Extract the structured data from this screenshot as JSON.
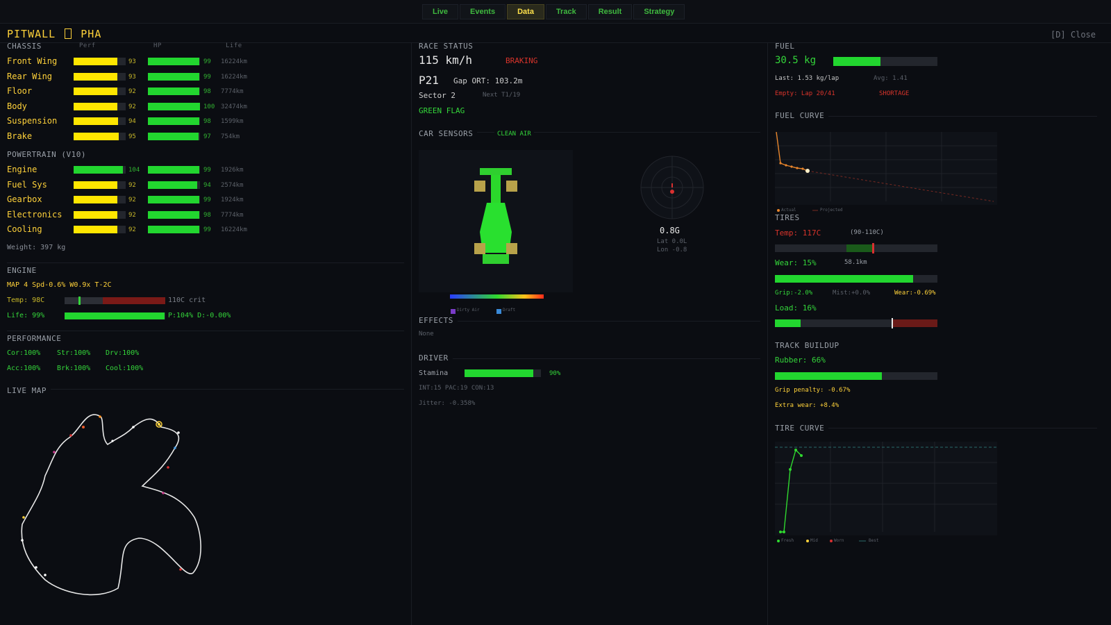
{
  "tabs": [
    "Live",
    "Events",
    "Data",
    "Track",
    "Result",
    "Strategy"
  ],
  "active_tab": "Data",
  "header": {
    "title_left": "PITWALL",
    "title_right": "PHA",
    "close": "[D] Close"
  },
  "chassis": {
    "title": "CHASSIS",
    "col_perf": "Perf",
    "col_hp": "HP",
    "col_life": "Life",
    "rows": [
      {
        "name": "Front Wing",
        "perf": 93,
        "hp": 99,
        "life": "16224km"
      },
      {
        "name": "Rear Wing",
        "perf": 93,
        "hp": 99,
        "life": "16224km"
      },
      {
        "name": "Floor",
        "perf": 92,
        "hp": 98,
        "life": "7774km"
      },
      {
        "name": "Body",
        "perf": 92,
        "hp": 100,
        "life": "32474km"
      },
      {
        "name": "Suspension",
        "perf": 94,
        "hp": 98,
        "life": "1599km"
      },
      {
        "name": "Brake",
        "perf": 95,
        "hp": 97,
        "life": "754km"
      }
    ]
  },
  "powertrain": {
    "title": "POWERTRAIN (V10)",
    "rows": [
      {
        "name": "Engine",
        "perf": 104,
        "hp": 99,
        "life": "1926km"
      },
      {
        "name": "Fuel Sys",
        "perf": 92,
        "hp": 94,
        "life": "2574km"
      },
      {
        "name": "Gearbox",
        "perf": 92,
        "hp": 99,
        "life": "1924km"
      },
      {
        "name": "Electronics",
        "perf": 92,
        "hp": 98,
        "life": "7774km"
      },
      {
        "name": "Cooling",
        "perf": 92,
        "hp": 99,
        "life": "16224km"
      }
    ],
    "weight": "Weight: 397 kg"
  },
  "engine": {
    "title": "ENGINE",
    "modes": "MAP 4  Spd-0.6%  W0.9x  T-2C",
    "temp_label": "Temp: 98C",
    "temp_crit": "110C crit",
    "temp_level": 0.14,
    "life_label": "Life: 99%",
    "life_level": 0.99,
    "life_extra": "P:104% D:-0.00%"
  },
  "performance": {
    "title": "PERFORMANCE",
    "row1": [
      "Cor:100%",
      "Str:100%",
      "Drv:100%"
    ],
    "row2": [
      "Acc:100%",
      "Brk:100%",
      "Cool:100%"
    ]
  },
  "live_map": {
    "title": "LIVE MAP"
  },
  "race_status": {
    "title": "RACE STATUS",
    "speed": "115 km/h",
    "state": "BRAKING",
    "position": "P21",
    "gap": "Gap ORT: 103.2m",
    "sector": "Sector 2",
    "next": "Next T1/19",
    "flag": "GREEN FLAG"
  },
  "car_sensors": {
    "title": "CAR SENSORS",
    "air": "CLEAN AIR",
    "g_total": "0.8G",
    "g_lat": "Lat 0.0L",
    "g_lon": "Lon -0.8",
    "legend_dirty": "Dirty Air",
    "legend_draft": "Draft"
  },
  "effects": {
    "title": "EFFECTS",
    "value": "None"
  },
  "driver": {
    "title": "DRIVER",
    "stamina_label": "Stamina",
    "stamina": 90,
    "stamina_text": "90%",
    "attrs": "INT:15 PAC:19 CON:13",
    "jitter": "Jitter: -0.358%"
  },
  "fuel": {
    "title": "FUEL",
    "amount": "30.5 kg",
    "level": 0.45,
    "last": "Last: 1.53 kg/lap",
    "avg": "Avg: 1.41",
    "empty": "Empty: Lap 20/41",
    "shortage": "SHORTAGE",
    "curve_title": "FUEL CURVE",
    "legend_actual": "Actual",
    "legend_projected": "Projected"
  },
  "tires": {
    "title": "TIRES",
    "temp": "Temp: 117C",
    "temp_window": "(90-110C)",
    "temp_level": 0.6,
    "wear": "Wear: 15%",
    "wear_km": "58.1km",
    "wear_level": 0.85,
    "grip": "Grip:-2.0%",
    "mist": "Mist:+0.0%",
    "wear_rate": "Wear:-0.69%",
    "load": "Load: 16%",
    "load_level": 0.16
  },
  "track_buildup": {
    "title": "TRACK BUILDUP",
    "rubber": "Rubber: 66%",
    "rubber_level": 0.66,
    "grip_penalty": "Grip penalty: -0.67%",
    "extra_wear": "Extra wear: +8.4%"
  },
  "tire_curve": {
    "title": "TIRE CURVE",
    "legend": [
      "Fresh",
      "Mid",
      "Worn",
      "Best"
    ]
  },
  "colors": {
    "accent": "#ffd23a",
    "good": "#34d63a",
    "bad": "#d9342b",
    "bg": "#0b0d12"
  }
}
